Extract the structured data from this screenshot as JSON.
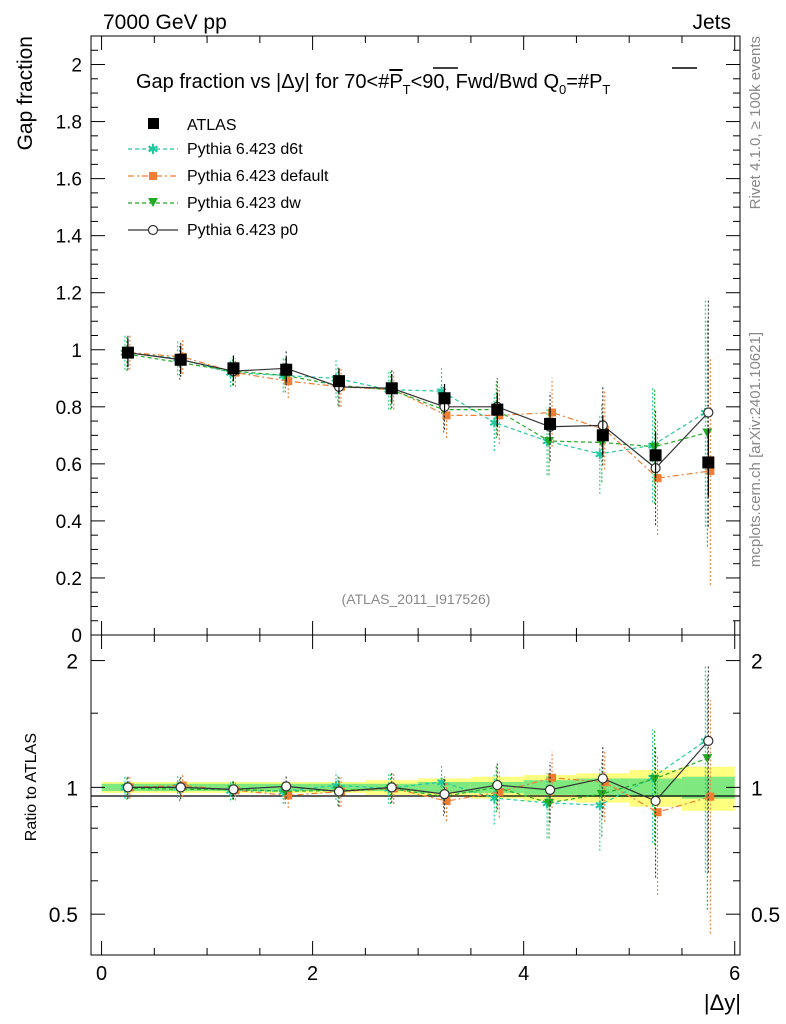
{
  "header": {
    "left": "7000 GeV pp",
    "right": "Jets",
    "side_top": "Rivet 4.1.0, ≥ 100k events",
    "side_bottom": "mcplots.cern.ch [arXiv:2401.10621]",
    "watermark": "(ATLAS_2011_I917526)"
  },
  "chart_data": {
    "type": "scatter",
    "title": "Gap fraction vs |Δy| for 70<#P̅T<90, Fwd/Bwd Q0=#P̅T",
    "title_parts": {
      "a": "Gap fraction vs |Δy| for 70<#",
      "b": "P",
      "c": "T",
      "d": "<90, Fwd/Bwd Q",
      "e": "0",
      "f": "=#",
      "g": "P",
      "h": "T"
    },
    "xlabel": "|Δy|",
    "ylabel": "Gap fraction",
    "ratio_ylabel": "Ratio to ATLAS",
    "xlim": [
      -0.1,
      6.05
    ],
    "ylim": [
      0,
      2.1
    ],
    "ratio_ylim": [
      0.4,
      2.3
    ],
    "x_ticks": [
      "0",
      "2",
      "4",
      "6"
    ],
    "y_ticks": [
      "0",
      "0.2",
      "0.4",
      "0.6",
      "0.8",
      "1",
      "1.2",
      "1.4",
      "1.6",
      "1.8",
      "2"
    ],
    "ratio_ticks": [
      "0.5",
      "1",
      "2"
    ],
    "x": [
      0.25,
      0.75,
      1.25,
      1.75,
      2.25,
      2.75,
      3.25,
      3.75,
      4.25,
      4.75,
      5.25,
      5.75
    ],
    "data": {
      "name": "ATLAS",
      "values": [
        0.99,
        0.965,
        0.935,
        0.93,
        0.89,
        0.865,
        0.83,
        0.79,
        0.74,
        0.7,
        0.63,
        0.605
      ]
    },
    "series": [
      {
        "name": "Pythia 6.423 d6t",
        "color": "#22c9a0",
        "values": [
          0.99,
          0.97,
          0.92,
          0.91,
          0.9,
          0.86,
          0.855,
          0.745,
          0.68,
          0.635,
          0.665,
          0.78
        ]
      },
      {
        "name": "Pythia 6.423 default",
        "color": "#f07d31",
        "values": [
          0.99,
          0.975,
          0.92,
          0.89,
          0.87,
          0.86,
          0.77,
          0.77,
          0.78,
          0.72,
          0.55,
          0.575
        ]
      },
      {
        "name": "Pythia 6.423 dw",
        "color": "#22aa22",
        "values": [
          0.985,
          0.955,
          0.925,
          0.91,
          0.875,
          0.86,
          0.79,
          0.79,
          0.68,
          0.675,
          0.66,
          0.71
        ]
      },
      {
        "name": "Pythia 6.423 p0",
        "color": "#333333",
        "values": [
          0.99,
          0.965,
          0.925,
          0.935,
          0.87,
          0.865,
          0.8,
          0.8,
          0.73,
          0.735,
          0.585,
          0.78
        ]
      }
    ],
    "mc_errors": [
      0.06,
      0.06,
      0.05,
      0.06,
      0.07,
      0.07,
      0.08,
      0.1,
      0.12,
      0.14,
      0.2,
      0.4
    ],
    "data_errors": [
      0.05,
      0.05,
      0.045,
      0.045,
      0.045,
      0.05,
      0.05,
      0.06,
      0.06,
      0.07,
      0.08,
      0.12
    ],
    "band_green": [
      0.02,
      0.02,
      0.02,
      0.02,
      0.02,
      0.02,
      0.03,
      0.03,
      0.04,
      0.05,
      0.05,
      0.06
    ],
    "band_yellow": [
      0.03,
      0.03,
      0.03,
      0.03,
      0.03,
      0.04,
      0.05,
      0.06,
      0.07,
      0.08,
      0.1,
      0.12
    ]
  }
}
